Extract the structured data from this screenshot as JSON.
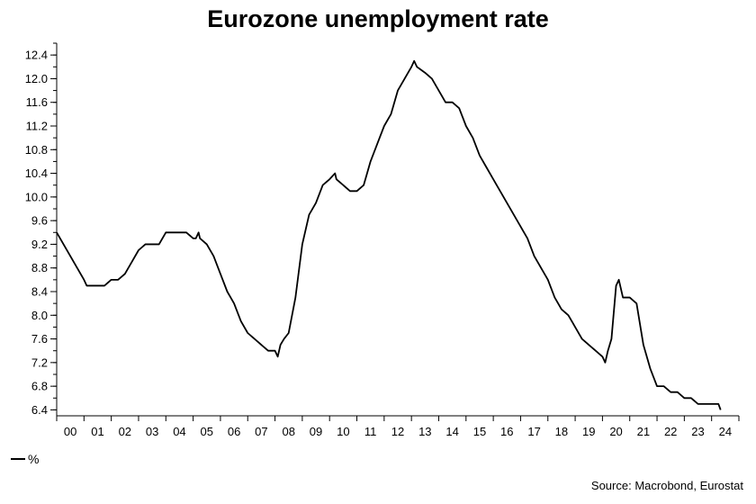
{
  "chart_data": {
    "type": "line",
    "title": "Eurozone unemployment rate",
    "legend": {
      "label": "%",
      "placement": "bottom-left"
    },
    "source": "Source: Macrobond, Eurostat",
    "xlabel": "",
    "ylabel": "",
    "xlim": [
      2000.0,
      2025.0
    ],
    "ylim": [
      6.3,
      12.6
    ],
    "y_ticks": [
      6.4,
      6.8,
      7.2,
      7.6,
      8.0,
      8.4,
      8.8,
      9.2,
      9.6,
      10.0,
      10.4,
      10.8,
      11.2,
      11.6,
      12.0,
      12.4
    ],
    "y_tick_labels": [
      "6.4",
      "6.8",
      "7.2",
      "7.6",
      "8.0",
      "8.4",
      "8.8",
      "9.2",
      "9.6",
      "10.0",
      "10.4",
      "10.8",
      "11.2",
      "11.6",
      "12.0",
      "12.4"
    ],
    "x_tick_labels": [
      "00",
      "01",
      "02",
      "03",
      "04",
      "05",
      "06",
      "07",
      "08",
      "09",
      "10",
      "11",
      "12",
      "13",
      "14",
      "15",
      "16",
      "17",
      "18",
      "19",
      "20",
      "21",
      "22",
      "23",
      "24"
    ],
    "grid": false,
    "series": [
      {
        "color": "#000000",
        "x": [
          2000.0,
          2000.25,
          2000.5,
          2000.75,
          2001.0,
          2001.1,
          2001.5,
          2001.75,
          2002.0,
          2002.25,
          2002.5,
          2002.75,
          2003.0,
          2003.25,
          2003.5,
          2003.75,
          2004.0,
          2004.5,
          2004.75,
          2005.0,
          2005.1,
          2005.2,
          2005.25,
          2005.5,
          2005.75,
          2006.0,
          2006.25,
          2006.5,
          2006.75,
          2007.0,
          2007.25,
          2007.5,
          2007.75,
          2008.0,
          2008.1,
          2008.2,
          2008.33,
          2008.5,
          2008.75,
          2009.0,
          2009.25,
          2009.5,
          2009.75,
          2010.0,
          2010.2,
          2010.25,
          2010.5,
          2010.75,
          2011.0,
          2011.25,
          2011.5,
          2011.75,
          2012.0,
          2012.25,
          2012.5,
          2012.75,
          2013.0,
          2013.1,
          2013.2,
          2013.5,
          2013.75,
          2014.0,
          2014.25,
          2014.5,
          2014.75,
          2015.0,
          2015.25,
          2015.5,
          2015.75,
          2016.0,
          2016.25,
          2016.5,
          2016.75,
          2017.0,
          2017.25,
          2017.5,
          2017.75,
          2018.0,
          2018.25,
          2018.5,
          2018.75,
          2019.0,
          2019.25,
          2019.5,
          2019.75,
          2020.0,
          2020.1,
          2020.2,
          2020.33,
          2020.5,
          2020.6,
          2020.75,
          2021.0,
          2021.25,
          2021.5,
          2021.75,
          2022.0,
          2022.25,
          2022.5,
          2022.75,
          2023.0,
          2023.25,
          2023.5,
          2023.75,
          2024.0,
          2024.25,
          2024.33
        ],
        "y": [
          9.4,
          9.2,
          9.0,
          8.8,
          8.6,
          8.5,
          8.5,
          8.5,
          8.6,
          8.6,
          8.7,
          8.9,
          9.1,
          9.2,
          9.2,
          9.2,
          9.4,
          9.4,
          9.4,
          9.3,
          9.3,
          9.4,
          9.3,
          9.2,
          9.0,
          8.7,
          8.4,
          8.2,
          7.9,
          7.7,
          7.6,
          7.5,
          7.4,
          7.4,
          7.3,
          7.5,
          7.6,
          7.7,
          8.3,
          9.2,
          9.7,
          9.9,
          10.2,
          10.3,
          10.4,
          10.3,
          10.2,
          10.1,
          10.1,
          10.2,
          10.6,
          10.9,
          11.2,
          11.4,
          11.8,
          12.0,
          12.2,
          12.3,
          12.2,
          12.1,
          12.0,
          11.8,
          11.6,
          11.6,
          11.5,
          11.2,
          11.0,
          10.7,
          10.5,
          10.3,
          10.1,
          9.9,
          9.7,
          9.5,
          9.3,
          9.0,
          8.8,
          8.6,
          8.3,
          8.1,
          8.0,
          7.8,
          7.6,
          7.5,
          7.4,
          7.3,
          7.2,
          7.4,
          7.6,
          8.5,
          8.6,
          8.3,
          8.3,
          8.2,
          7.5,
          7.1,
          6.8,
          6.8,
          6.7,
          6.7,
          6.6,
          6.6,
          6.5,
          6.5,
          6.5,
          6.5,
          6.4
        ]
      }
    ]
  }
}
